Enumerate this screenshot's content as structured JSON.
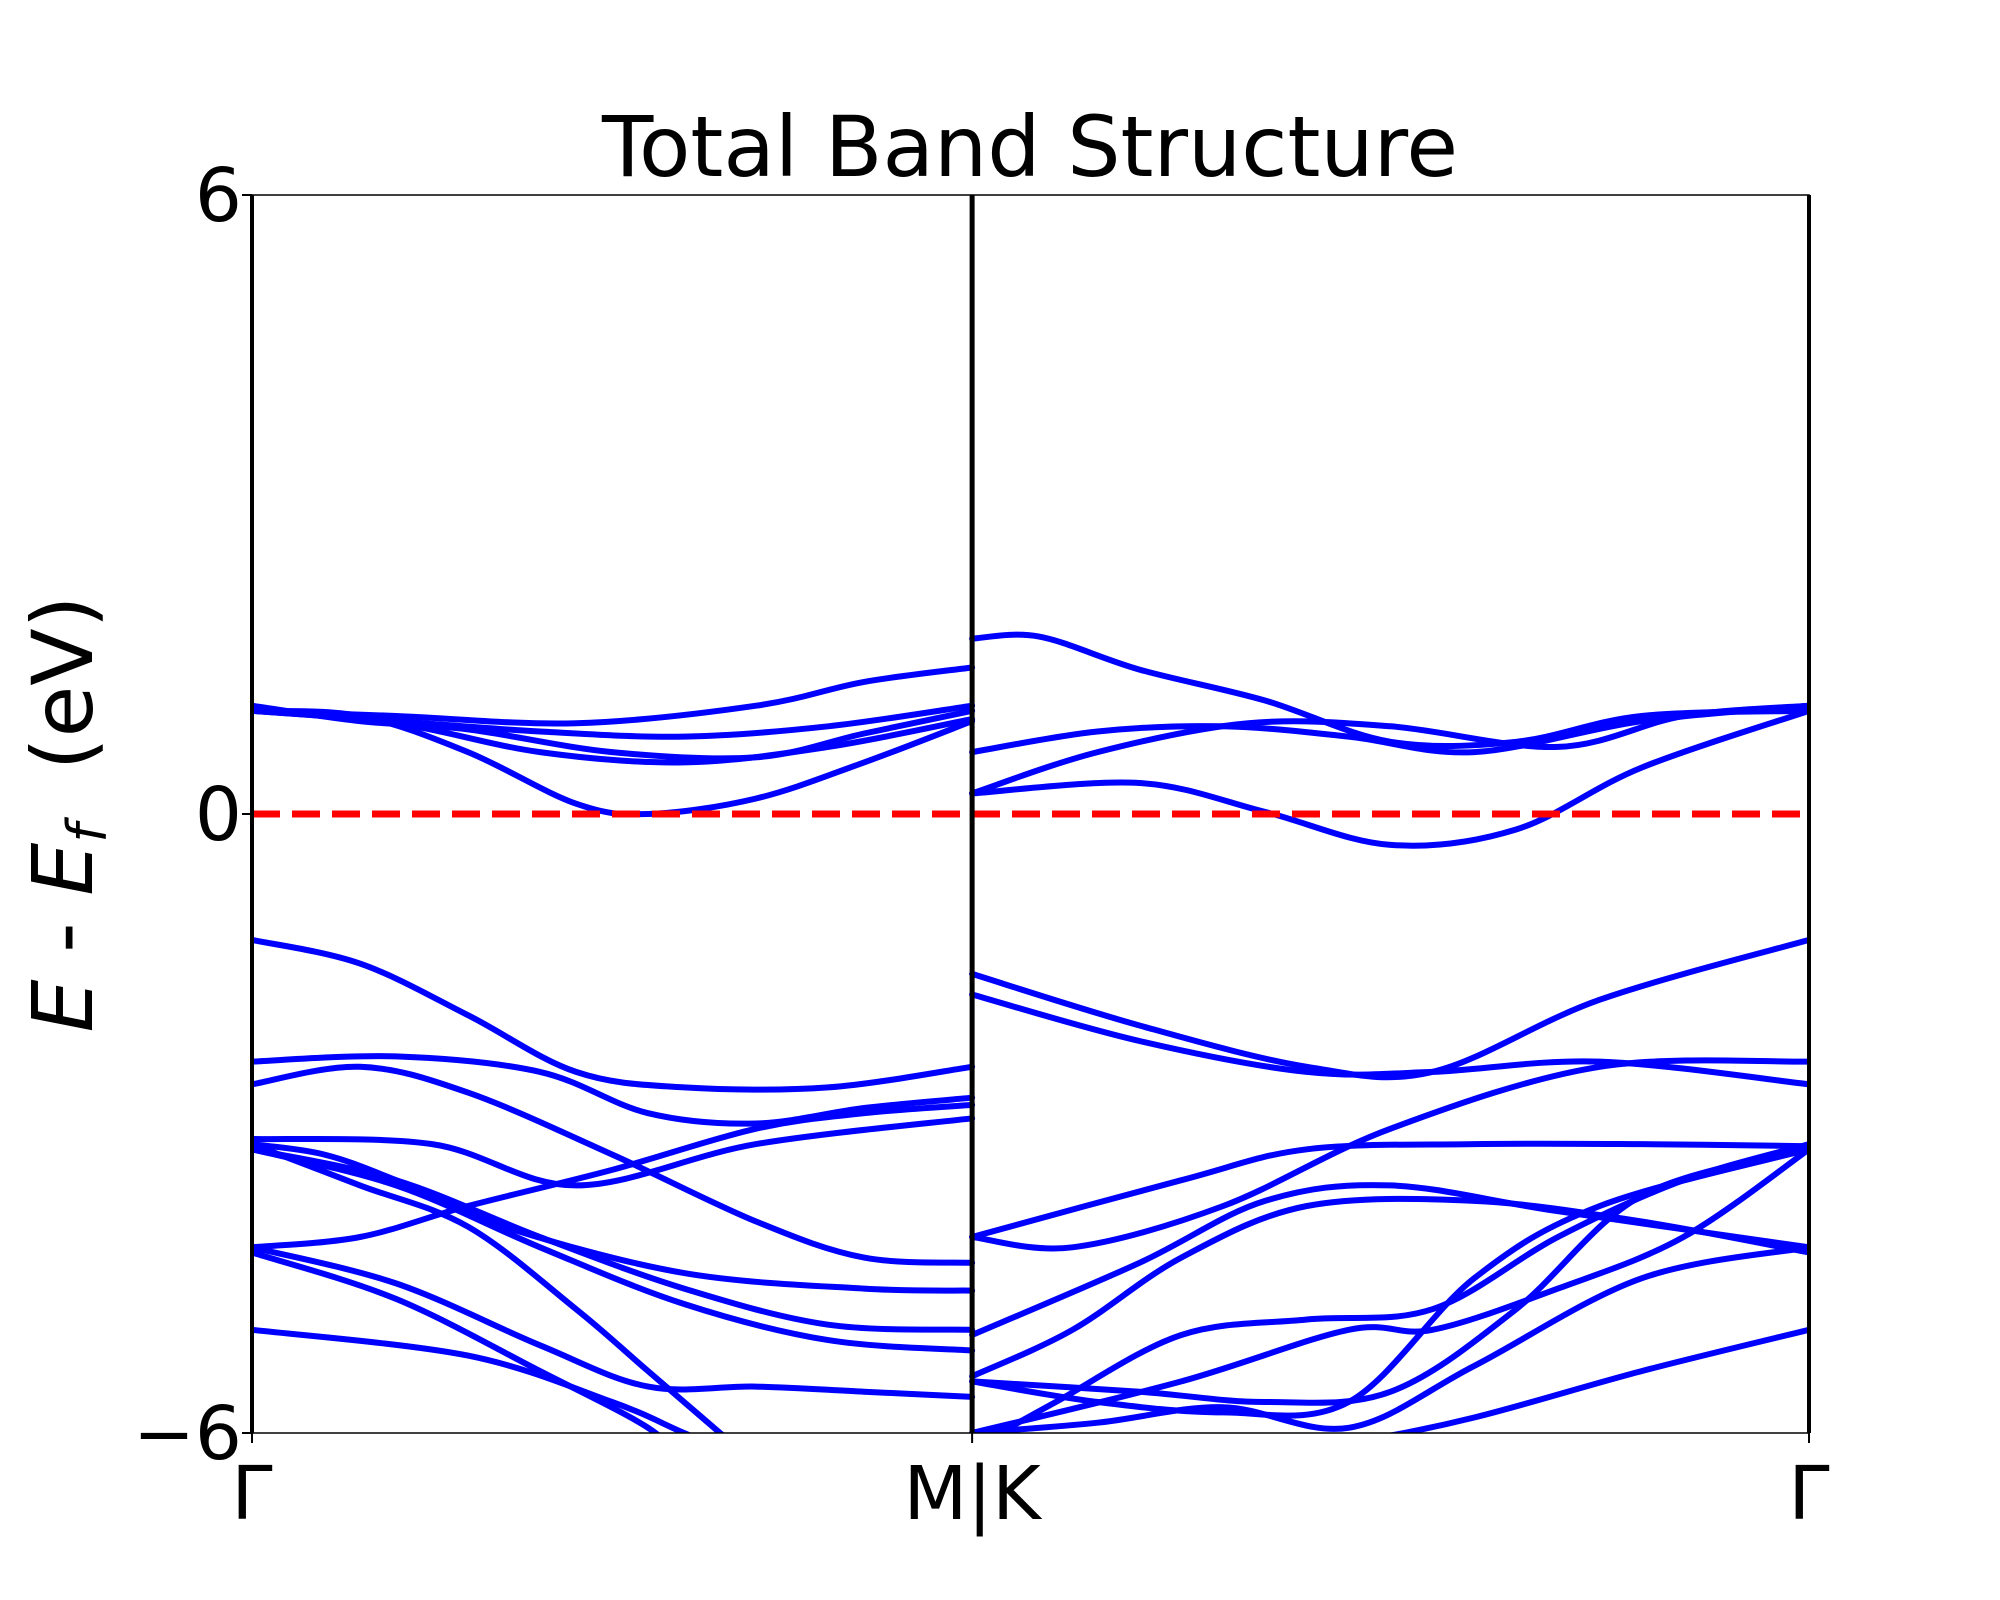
{
  "chart_data": {
    "type": "line",
    "title": "Total Band Structure",
    "ylabel": "E - E_f  (eV)",
    "ylabel_parts": {
      "E": "E",
      "dash": " - ",
      "Ef": "E",
      "sub": "f",
      "unit": "  (eV)"
    },
    "ylim": [
      -6,
      6
    ],
    "xlim": [
      0,
      1
    ],
    "yticks": [
      {
        "value": 6,
        "label": "6"
      },
      {
        "value": 0,
        "label": "0"
      },
      {
        "value": -6,
        "label": "−6"
      }
    ],
    "kpoints": [
      {
        "x": 0,
        "label": "Γ"
      },
      {
        "x": 0.4625,
        "label": "M|K"
      },
      {
        "x": 1,
        "label": "Γ"
      }
    ],
    "fermi_level": 0,
    "grid": false,
    "colors": {
      "bands": "#0000ff",
      "fermi": "#ff0000",
      "kline": "#000000"
    },
    "segments": [
      {
        "name": "Γ–M",
        "x_range": [
          0,
          0.4625
        ],
        "bands": [
          {
            "t": [
              0,
              0.15,
              0.3,
              0.45,
              0.55,
              0.7,
              0.85,
              1
            ],
            "e": [
              1.0,
              0.95,
              0.6,
              0.1,
              0.0,
              0.15,
              0.5,
              0.9
            ]
          },
          {
            "t": [
              0,
              0.2,
              0.4,
              0.6,
              0.8,
              1
            ],
            "e": [
              1.0,
              0.9,
              0.8,
              0.75,
              0.85,
              1.05
            ]
          },
          {
            "t": [
              0,
              0.2,
              0.4,
              0.6,
              0.8,
              1
            ],
            "e": [
              1.0,
              0.88,
              0.6,
              0.5,
              0.65,
              0.92
            ]
          },
          {
            "t": [
              0,
              0.2,
              0.45,
              0.7,
              0.85,
              1
            ],
            "e": [
              1.0,
              0.95,
              0.88,
              1.05,
              1.28,
              1.42
            ]
          },
          {
            "t": [
              0,
              0.15,
              0.3,
              0.5,
              0.7,
              0.85,
              1
            ],
            "e": [
              1.05,
              0.9,
              0.82,
              0.6,
              0.55,
              0.78,
              1.0
            ]
          },
          {
            "t": [
              0,
              0.15,
              0.3,
              0.45,
              0.6,
              0.8,
              1
            ],
            "e": [
              -1.22,
              -1.45,
              -1.95,
              -2.5,
              -2.65,
              -2.65,
              -2.45
            ]
          },
          {
            "t": [
              0,
              0.2,
              0.4,
              0.55,
              0.7,
              0.85,
              1
            ],
            "e": [
              -2.4,
              -2.35,
              -2.5,
              -2.9,
              -3.0,
              -2.85,
              -2.75
            ]
          },
          {
            "t": [
              0,
              0.15,
              0.3,
              0.5,
              0.7,
              0.85,
              1
            ],
            "e": [
              -2.62,
              -2.45,
              -2.7,
              -3.3,
              -3.95,
              -4.3,
              -4.35
            ]
          },
          {
            "t": [
              0,
              0.25,
              0.45,
              0.7,
              1
            ],
            "e": [
              -3.15,
              -3.2,
              -3.6,
              -3.2,
              -2.95
            ]
          },
          {
            "t": [
              0,
              0.15,
              0.3,
              0.5,
              0.7,
              0.85,
              1
            ],
            "e": [
              -4.2,
              -4.1,
              -3.8,
              -3.45,
              -3.05,
              -2.9,
              -2.82
            ]
          },
          {
            "t": [
              0,
              0.1,
              0.2,
              0.35,
              0.6,
              0.85,
              1
            ],
            "e": [
              -3.2,
              -3.3,
              -3.55,
              -4.0,
              -4.45,
              -4.6,
              -4.62
            ]
          },
          {
            "t": [
              0,
              0.2,
              0.4,
              0.6,
              0.8,
              1
            ],
            "e": [
              -3.25,
              -3.55,
              -4.1,
              -4.6,
              -4.95,
              -5.0
            ]
          },
          {
            "t": [
              0,
              0.2,
              0.4,
              0.6,
              0.8,
              1
            ],
            "e": [
              -3.25,
              -3.6,
              -4.2,
              -4.75,
              -5.1,
              -5.2
            ]
          },
          {
            "t": [
              0,
              0.2,
              0.4,
              0.55,
              0.7,
              0.85,
              1
            ],
            "e": [
              -4.2,
              -4.55,
              -5.15,
              -5.55,
              -5.55,
              -5.6,
              -5.65
            ]
          },
          {
            "t": [
              0,
              0.2,
              0.4,
              0.55,
              0.6
            ],
            "e": [
              -4.25,
              -4.7,
              -5.4,
              -5.95,
              -6.3
            ]
          },
          {
            "t": [
              0,
              0.15,
              0.3,
              0.45,
              0.55,
              0.7
            ],
            "e": [
              -3.2,
              -3.6,
              -4.0,
              -4.8,
              -5.4,
              -6.3
            ]
          },
          {
            "t": [
              0,
              0.3,
              0.5,
              0.6,
              0.7
            ],
            "e": [
              -5.0,
              -5.25,
              -5.7,
              -6.0,
              -6.3
            ]
          }
        ]
      },
      {
        "name": "K–Γ",
        "x_range": [
          0.4625,
          1
        ],
        "bands": [
          {
            "t": [
              0,
              0.08,
              0.2,
              0.35,
              0.5,
              0.65,
              0.8,
              1
            ],
            "e": [
              1.7,
              1.72,
              1.4,
              1.1,
              0.7,
              0.7,
              0.95,
              1.0
            ]
          },
          {
            "t": [
              0,
              0.15,
              0.3,
              0.45,
              0.6,
              0.8,
              1
            ],
            "e": [
              0.6,
              0.8,
              0.85,
              0.75,
              0.6,
              0.9,
              1.05
            ]
          },
          {
            "t": [
              0,
              0.15,
              0.33,
              0.5,
              0.7,
              0.85,
              1
            ],
            "e": [
              0.2,
              0.6,
              0.88,
              0.85,
              0.65,
              0.95,
              1.05
            ]
          },
          {
            "t": [
              0,
              0.2,
              0.35,
              0.5,
              0.65,
              0.8,
              1
            ],
            "e": [
              0.2,
              0.3,
              0.02,
              -0.3,
              -0.15,
              0.45,
              1.0
            ]
          },
          {
            "t": [
              0,
              0.2,
              0.4,
              0.55,
              0.75,
              1
            ],
            "e": [
              -1.55,
              -2.05,
              -2.45,
              -2.5,
              -1.8,
              -1.22
            ]
          },
          {
            "t": [
              0,
              0.2,
              0.4,
              0.55,
              0.75,
              1
            ],
            "e": [
              -1.75,
              -2.2,
              -2.5,
              -2.5,
              -2.4,
              -2.62
            ]
          },
          {
            "t": [
              0,
              0.25,
              0.4,
              0.6,
              0.8,
              1
            ],
            "e": [
              -4.1,
              -3.55,
              -3.25,
              -3.2,
              -3.2,
              -3.22
            ]
          },
          {
            "t": [
              0,
              0.12,
              0.3,
              0.5,
              0.75,
              1
            ],
            "e": [
              -4.1,
              -4.2,
              -3.8,
              -3.05,
              -2.45,
              -2.4
            ]
          },
          {
            "t": [
              0,
              0.2,
              0.35,
              0.5,
              0.7,
              1
            ],
            "e": [
              -5.05,
              -4.35,
              -3.75,
              -3.6,
              -3.85,
              -4.2
            ]
          },
          {
            "t": [
              0,
              0.12,
              0.25,
              0.4,
              0.6,
              0.8,
              1
            ],
            "e": [
              -5.45,
              -5.0,
              -4.3,
              -3.8,
              -3.75,
              -3.95,
              -4.25
            ]
          },
          {
            "t": [
              0,
              0.2,
              0.35,
              0.5,
              0.65,
              0.8,
              1
            ],
            "e": [
              -5.5,
              -5.6,
              -5.7,
              -5.6,
              -4.8,
              -3.7,
              -3.25
            ]
          },
          {
            "t": [
              0,
              0.1,
              0.25,
              0.4,
              0.55,
              0.7,
              0.85,
              1
            ],
            "e": [
              -6.15,
              -5.7,
              -5.05,
              -4.9,
              -4.8,
              -4.1,
              -3.55,
              -3.2
            ]
          },
          {
            "t": [
              0,
              0.15,
              0.3,
              0.45,
              0.6,
              0.75,
              1
            ],
            "e": [
              -5.5,
              -5.7,
              -5.8,
              -5.7,
              -4.5,
              -3.8,
              -3.25
            ]
          },
          {
            "t": [
              0,
              0.25,
              0.45,
              0.55,
              0.7,
              0.85,
              1
            ],
            "e": [
              -6.0,
              -5.5,
              -5.0,
              -5.0,
              -4.6,
              -4.1,
              -3.25
            ]
          },
          {
            "t": [
              0,
              0.15,
              0.3,
              0.45,
              0.6,
              0.8,
              1
            ],
            "e": [
              -6.0,
              -5.9,
              -5.75,
              -5.95,
              -5.35,
              -4.5,
              -4.2
            ]
          },
          {
            "t": [
              0,
              0.15,
              0.3,
              0.45,
              0.6,
              0.8,
              1
            ],
            "e": [
              -6.2,
              -6.4,
              -6.3,
              -6.1,
              -5.85,
              -5.4,
              -5.0
            ]
          }
        ]
      }
    ]
  }
}
